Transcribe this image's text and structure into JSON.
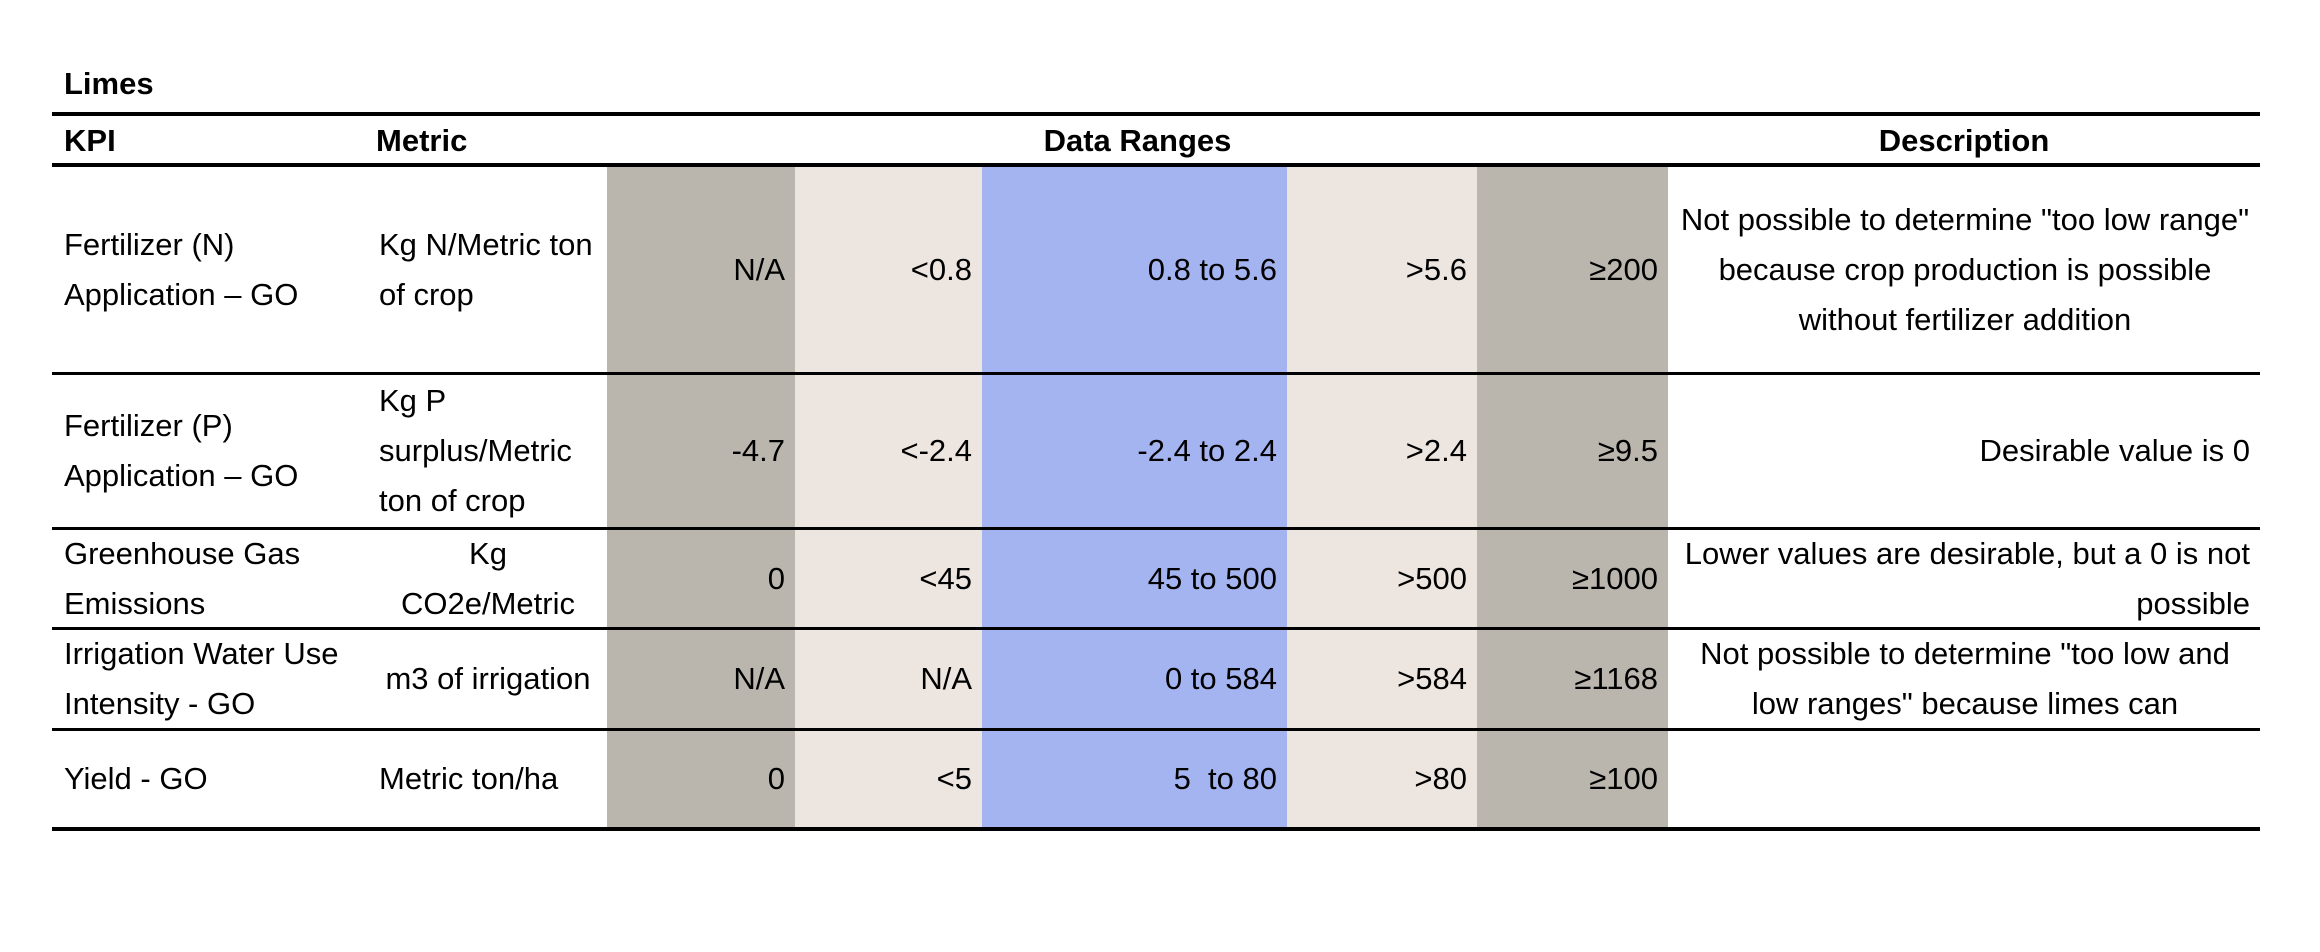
{
  "header": {
    "title": "Limes"
  },
  "table": {
    "columns": [
      "KPI",
      "Metric",
      "Data Ranges",
      "Description"
    ],
    "rows": [
      {
        "kpi": "Fertilizer (N) Application – GO",
        "metric": "Kg N/Metric ton of crop",
        "ranges": [
          "N/A",
          "<0.8",
          "0.8 to 5.6",
          ">5.6",
          "≥200"
        ],
        "description": "Not possible to determine \"too low range\" because crop production is possible without fertilizer addition"
      },
      {
        "kpi": "Fertilizer (P) Application – GO",
        "metric": "Kg P surplus/Metric ton of crop",
        "ranges": [
          "-4.7",
          "<-2.4",
          "-2.4 to 2.4",
          ">2.4",
          "≥9.5"
        ],
        "description": "Desirable value is 0"
      },
      {
        "kpi": "Greenhouse Gas Emissions",
        "metric": "Kg CO2e/Metric",
        "ranges": [
          "0",
          "<45",
          "45 to 500",
          ">500",
          "≥1000"
        ],
        "description": "Lower values are desirable, but a 0 is not possible"
      },
      {
        "kpi": "Irrigation Water Use Intensity - GO",
        "metric": "m3 of irrigation",
        "ranges": [
          "N/A",
          "N/A",
          "0 to 584",
          ">584",
          "≥1168"
        ],
        "description": "Not possible to determine \"too low and low ranges\" because limes can"
      },
      {
        "kpi": "Yield - GO",
        "metric": "Metric ton/ha",
        "ranges": [
          "0",
          "<5",
          "5  to 80",
          ">80",
          "≥100"
        ]
      }
    ]
  }
}
